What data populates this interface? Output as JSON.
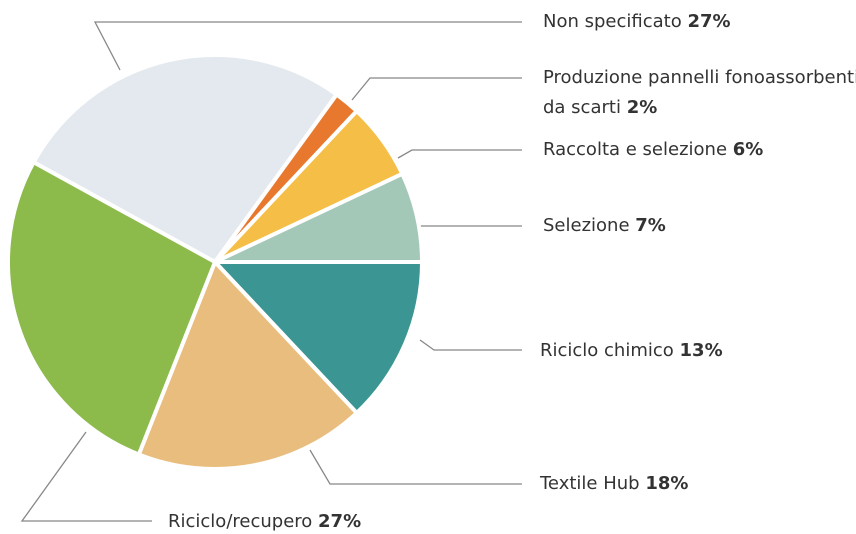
{
  "chart_data": {
    "type": "pie",
    "categories": [
      "Non specificato",
      "Produzione pannelli fonoassorbenti da scarti",
      "Raccolta e selezione",
      "Selezione",
      "Riciclo chimico",
      "Textile Hub",
      "Riciclo/recupero"
    ],
    "values": [
      27,
      2,
      6,
      7,
      13,
      18,
      27
    ],
    "value_labels": [
      "27%",
      "2%",
      "6%",
      "7%",
      "13%",
      "18%",
      "27%"
    ],
    "colors": [
      "#e3e9ee",
      "#e8782d",
      "#f5bf47",
      "#a3c8b8",
      "#3b9592",
      "#e9bd7e",
      "#8cba4b"
    ]
  }
}
